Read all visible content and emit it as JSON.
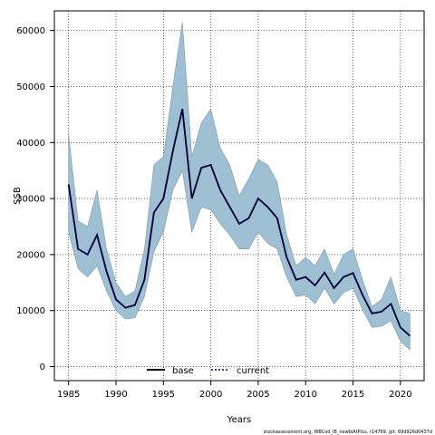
{
  "chart_data": {
    "type": "line",
    "xlabel": "Years",
    "ylabel": "SSB",
    "xlim": [
      1983.5,
      2022.5
    ],
    "ylim": [
      -2500,
      63500
    ],
    "x_ticks": [
      1985,
      1990,
      1995,
      2000,
      2005,
      2010,
      2015,
      2020
    ],
    "y_ticks": [
      0,
      10000,
      20000,
      30000,
      40000,
      50000,
      60000
    ],
    "x_tick_labels": [
      "1985",
      "1990",
      "1995",
      "2000",
      "2005",
      "2010",
      "2015",
      "2020"
    ],
    "y_tick_labels": [
      "0",
      "10000",
      "20000",
      "30000",
      "40000",
      "50000",
      "60000"
    ],
    "grid": true,
    "legend_position": "bottom-left",
    "x": [
      1985,
      1986,
      1987,
      1988,
      1989,
      1990,
      1991,
      1992,
      1993,
      1994,
      1995,
      1996,
      1997,
      1998,
      1999,
      2000,
      2001,
      2002,
      2003,
      2004,
      2005,
      2006,
      2007,
      2008,
      2009,
      2010,
      2011,
      2012,
      2013,
      2014,
      2015,
      2016,
      2017,
      2018,
      2019,
      2020,
      2021
    ],
    "series": [
      {
        "name": "base",
        "color": "#000000",
        "style": "solid",
        "values": [
          32500,
          21000,
          20000,
          23500,
          17000,
          12000,
          10500,
          11000,
          15500,
          27500,
          30000,
          38500,
          46000,
          30000,
          35500,
          36000,
          31500,
          28500,
          25500,
          26500,
          30000,
          28500,
          26500,
          19500,
          15500,
          16000,
          14500,
          16800,
          14000,
          16000,
          16700,
          12800,
          9500,
          9800,
          11200,
          7000,
          5500
        ]
      },
      {
        "name": "current",
        "color": "#000080",
        "style": "dotted",
        "values": [
          32500,
          21000,
          20000,
          23500,
          17000,
          12000,
          10500,
          11000,
          15500,
          27500,
          30000,
          38500,
          46000,
          30000,
          35500,
          36000,
          31500,
          28500,
          25500,
          26500,
          30000,
          28500,
          26500,
          19500,
          15500,
          16000,
          14500,
          16800,
          14000,
          16000,
          16700,
          12800,
          9500,
          9800,
          11200,
          7000,
          5500
        ]
      }
    ],
    "band": {
      "color": "#9fbfd2",
      "upper": [
        41500,
        26000,
        25000,
        31500,
        21000,
        15000,
        12500,
        13500,
        21000,
        36000,
        37500,
        50000,
        61500,
        37500,
        43500,
        46000,
        39000,
        36000,
        30500,
        33500,
        37000,
        36000,
        33000,
        23500,
        18000,
        19500,
        18000,
        21000,
        16500,
        20000,
        21000,
        15500,
        10700,
        12000,
        16000,
        10000,
        9500
      ],
      "lower": [
        24000,
        17500,
        16000,
        18000,
        13500,
        10000,
        8500,
        8700,
        12500,
        20500,
        24000,
        31500,
        35000,
        24000,
        28500,
        28000,
        25500,
        23500,
        21000,
        21000,
        24000,
        22000,
        21000,
        16000,
        12500,
        12800,
        11200,
        14000,
        11200,
        13200,
        14000,
        10200,
        7000,
        7200,
        8200,
        4500,
        3000
      ]
    },
    "footer": "stockassessment.org, WBCod_IB_newbiAtPlus, r14769, git: 69d926d0437d"
  }
}
